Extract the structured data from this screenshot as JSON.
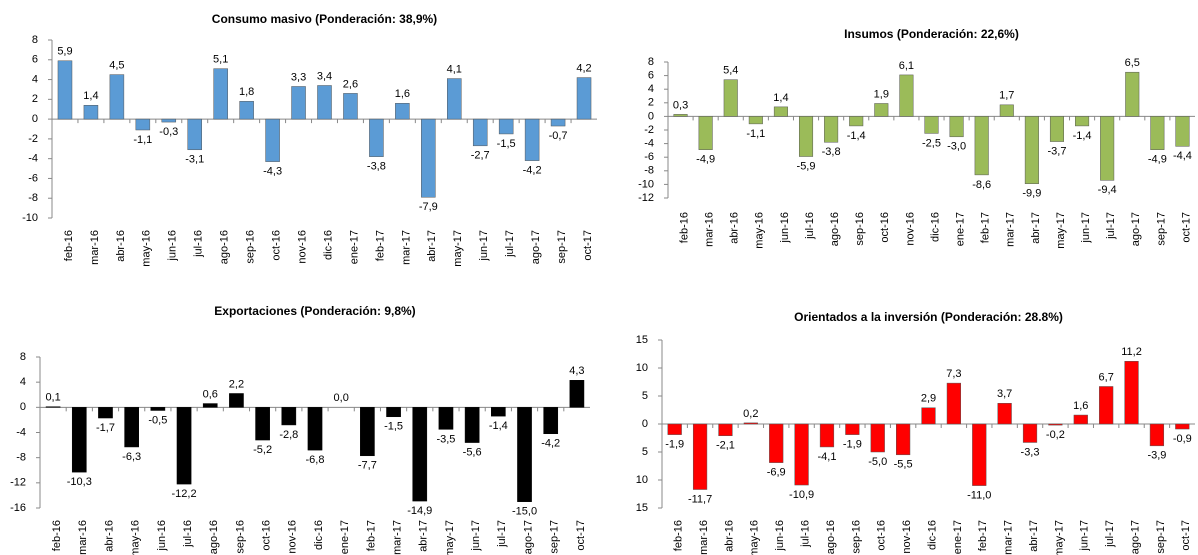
{
  "chart_data": [
    {
      "type": "bar",
      "title": "Consumo masivo (Ponderación: 38,9%)",
      "categories": [
        "feb-16",
        "mar-16",
        "abr-16",
        "may-16",
        "jun-16",
        "jul-16",
        "ago-16",
        "sep-16",
        "oct-16",
        "nov-16",
        "dic-16",
        "ene-17",
        "feb-17",
        "mar-17",
        "abr-17",
        "may-17",
        "jun-17",
        "jul-17",
        "ago-17",
        "sep-17",
        "oct-17"
      ],
      "values": [
        5.9,
        1.4,
        4.5,
        -1.1,
        -0.3,
        -3.1,
        5.1,
        1.8,
        -4.3,
        3.3,
        3.4,
        2.6,
        -3.8,
        1.6,
        -7.9,
        4.1,
        -2.7,
        -1.5,
        -4.2,
        -0.7,
        4.2
      ],
      "value_labels": [
        "5,9",
        "1,4",
        "4,5",
        "-1,1",
        "-0,3",
        "-3,1",
        "5,1",
        "1,8",
        "-4,3",
        "3,3",
        "3,4",
        "2,6",
        "-3,8",
        "1,6",
        "-7,9",
        "4,1",
        "-2,7",
        "-1,5",
        "-4,2",
        "-0,7",
        "4,2"
      ],
      "color": "#5b9bd5",
      "ylim": [
        -10,
        8
      ],
      "yticks": [
        8,
        6,
        4,
        2,
        0,
        -2,
        -4,
        -6,
        -8,
        -10
      ]
    },
    {
      "type": "bar",
      "title": "Insumos (Ponderación: 22,6%)",
      "categories": [
        "feb-16",
        "mar-16",
        "abr-16",
        "may-16",
        "jun-16",
        "jul-16",
        "ago-16",
        "sep-16",
        "oct-16",
        "nov-16",
        "dic-16",
        "ene-17",
        "feb-17",
        "mar-17",
        "abr-17",
        "may-17",
        "jun-17",
        "jul-17",
        "ago-17",
        "sep-17",
        "oct-17"
      ],
      "values": [
        0.3,
        -4.9,
        5.4,
        -1.1,
        1.4,
        -5.9,
        -3.8,
        -1.4,
        1.9,
        6.1,
        -2.5,
        -3.0,
        -8.6,
        1.7,
        -9.9,
        -3.7,
        -1.4,
        -9.4,
        6.5,
        -4.9,
        -4.4
      ],
      "value_labels": [
        "0,3",
        "-4,9",
        "5,4",
        "-1,1",
        "1,4",
        "-5,9",
        "-3,8",
        "-1,4",
        "1,9",
        "6,1",
        "-2,5",
        "-3,0",
        "-8,6",
        "1,7",
        "-9,9",
        "-3,7",
        "-1,4",
        "-9,4",
        "6,5",
        "-4,9",
        "-4,4"
      ],
      "color": "#9bbb59",
      "ylim": [
        -12,
        8
      ],
      "yticks": [
        8,
        6,
        4,
        2,
        0,
        -2,
        -4,
        -6,
        -8,
        -10,
        -12
      ]
    },
    {
      "type": "bar",
      "title": "Exportaciones (Ponderación: 9,8%)",
      "categories": [
        "feb-16",
        "mar-16",
        "abr-16",
        "may-16",
        "jun-16",
        "jul-16",
        "ago-16",
        "sep-16",
        "oct-16",
        "nov-16",
        "dic-16",
        "ene-17",
        "feb-17",
        "mar-17",
        "abr-17",
        "may-17",
        "jun-17",
        "jul-17",
        "ago-17",
        "sep-17",
        "oct-17"
      ],
      "values": [
        0.1,
        -10.3,
        -1.7,
        -6.3,
        -0.5,
        -12.2,
        0.6,
        2.2,
        -5.2,
        -2.8,
        -6.8,
        0.0,
        -7.7,
        -1.5,
        -14.9,
        -3.5,
        -5.6,
        -1.4,
        -15.0,
        -4.2,
        4.3
      ],
      "value_labels": [
        "0,1",
        "-10,3",
        "-1,7",
        "-6,3",
        "-0,5",
        "-12,2",
        "0,6",
        "2,2",
        "-5,2",
        "-2,8",
        "-6,8",
        "0,0",
        "-7,7",
        "-1,5",
        "-14,9",
        "-3,5",
        "-5,6",
        "-1,4",
        "-15,0",
        "-4,2",
        "4,3"
      ],
      "color": "#000000",
      "ylim": [
        -16,
        8
      ],
      "yticks": [
        8,
        4,
        0,
        -4,
        -8,
        -12,
        -16
      ]
    },
    {
      "type": "bar",
      "title": "Orientados a la inversión (Ponderación: 28.8%)",
      "categories": [
        "feb-16",
        "mar-16",
        "abr-16",
        "may-16",
        "jun-16",
        "jul-16",
        "ago-16",
        "sep-16",
        "oct-16",
        "nov-16",
        "dic-16",
        "ene-17",
        "feb-17",
        "mar-17",
        "abr-17",
        "may-17",
        "jun-17",
        "jul-17",
        "ago-17",
        "sep-17",
        "oct-17"
      ],
      "values": [
        -1.9,
        -11.7,
        -2.1,
        0.2,
        -6.9,
        -10.9,
        -4.1,
        -1.9,
        -5.0,
        -5.5,
        2.9,
        7.3,
        -11.0,
        3.7,
        -3.3,
        -0.2,
        1.6,
        6.7,
        11.2,
        -3.9,
        -0.9
      ],
      "value_labels": [
        "-1,9",
        "-11,7",
        "-2,1",
        "0,2",
        "-6,9",
        "-10,9",
        "-4,1",
        "-1,9",
        "-5,0",
        "-5,5",
        "2,9",
        "7,3",
        "-11,0",
        "3,7",
        "-3,3",
        "-0,2",
        "1,6",
        "6,7",
        "11,2",
        "-3,9",
        "-0,9"
      ],
      "color": "#ff0000",
      "ylim": [
        -15,
        15
      ],
      "yticks": [
        15,
        10,
        5,
        0,
        {
          "value": -5,
          "label": "5"
        },
        {
          "value": -10,
          "label": "10"
        },
        {
          "value": -15,
          "label": "15"
        }
      ]
    }
  ]
}
